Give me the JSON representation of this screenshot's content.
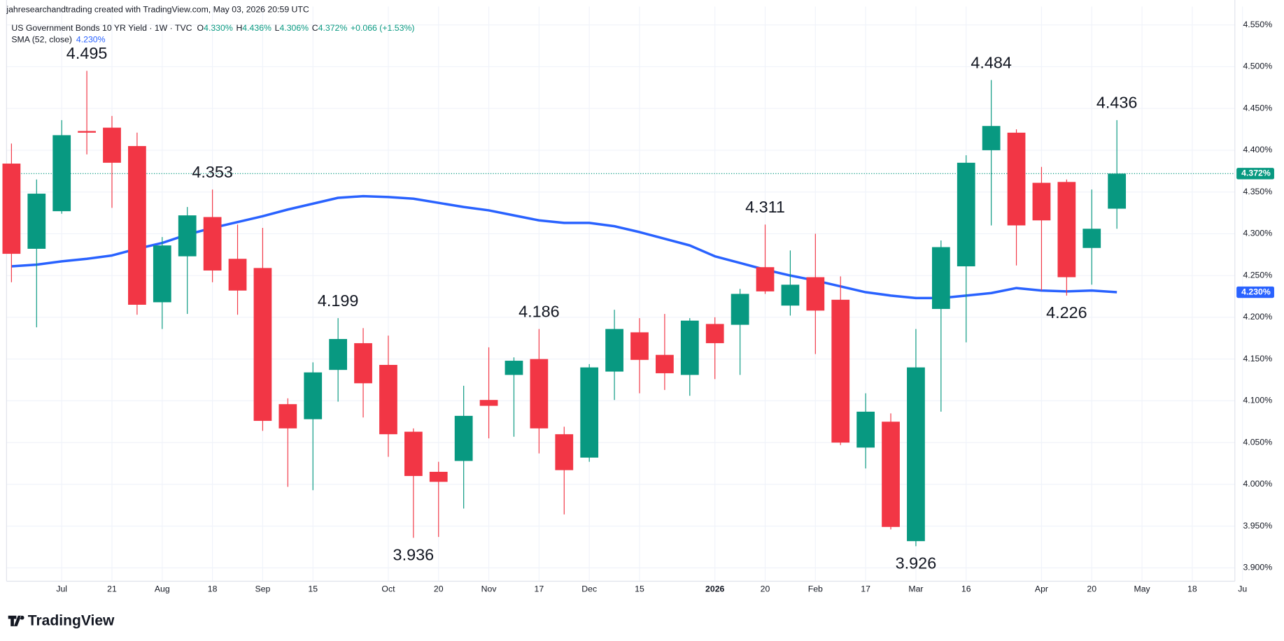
{
  "chart_data": {
    "type": "candlestick",
    "header": "jahresearchandtrading created with TradingView.com, May 03, 2026 20:59 UTC",
    "symbol": "US Government Bonds 10 YR Yield · 1W · TVC",
    "legend_items": [
      {
        "key": "O",
        "value": "4.330%"
      },
      {
        "key": "H",
        "value": "4.436%"
      },
      {
        "key": "L",
        "value": "4.306%"
      },
      {
        "key": "C",
        "value": "4.372%"
      }
    ],
    "change": "+0.066 (+1.53%)",
    "logo": "TradingView",
    "up_color": "#089981",
    "down_color": "#f23645",
    "open": [
      4.384,
      4.282,
      4.327,
      4.423,
      4.427,
      4.405,
      4.218,
      4.273,
      4.32,
      4.27,
      4.259,
      4.096,
      4.078,
      4.137,
      4.169,
      4.143,
      4.063,
      4.015,
      4.028,
      4.101,
      4.131,
      4.15,
      4.06,
      4.032,
      4.135,
      4.182,
      4.155,
      4.131,
      4.192,
      4.191,
      4.26,
      4.214,
      4.248,
      4.221,
      4.044,
      4.075,
      3.932,
      4.21,
      4.261,
      4.4,
      4.421,
      4.361,
      4.362,
      4.283,
      4.33
    ],
    "high": [
      4.408,
      4.365,
      4.436,
      4.495,
      4.441,
      4.421,
      4.296,
      4.332,
      4.353,
      4.311,
      4.307,
      4.103,
      4.146,
      4.199,
      4.187,
      4.178,
      4.067,
      4.027,
      4.118,
      4.164,
      4.152,
      4.186,
      4.069,
      4.144,
      4.209,
      4.199,
      4.204,
      4.199,
      4.2,
      4.234,
      4.311,
      4.28,
      4.3,
      4.249,
      4.109,
      4.085,
      4.186,
      4.292,
      4.394,
      4.484,
      4.425,
      4.38,
      4.365,
      4.353,
      4.436
    ],
    "low": [
      4.242,
      4.188,
      4.324,
      4.395,
      4.331,
      4.203,
      4.186,
      4.204,
      4.242,
      4.203,
      4.064,
      3.997,
      3.993,
      4.099,
      4.08,
      4.033,
      3.936,
      3.937,
      3.971,
      4.055,
      4.057,
      4.037,
      3.964,
      4.027,
      4.101,
      4.109,
      4.113,
      4.106,
      4.126,
      4.131,
      4.228,
      4.202,
      4.156,
      4.047,
      4.019,
      3.946,
      3.926,
      4.087,
      4.17,
      4.31,
      4.262,
      4.232,
      4.226,
      4.239,
      4.306
    ],
    "close": [
      4.276,
      4.348,
      4.418,
      4.421,
      4.385,
      4.215,
      4.286,
      4.322,
      4.256,
      4.232,
      4.076,
      4.067,
      4.134,
      4.174,
      4.121,
      4.06,
      4.01,
      4.003,
      4.082,
      4.094,
      4.148,
      4.067,
      4.017,
      4.14,
      4.186,
      4.149,
      4.133,
      4.196,
      4.169,
      4.228,
      4.231,
      4.239,
      4.208,
      4.05,
      4.087,
      3.949,
      4.14,
      4.284,
      4.385,
      4.429,
      4.31,
      4.316,
      4.248,
      4.306,
      4.372
    ],
    "sma": {
      "name": "SMA (52, close)",
      "value_label": "4.230%",
      "color": "#2962ff",
      "values": [
        4.261,
        4.263,
        4.267,
        4.27,
        4.274,
        4.282,
        4.289,
        4.299,
        4.307,
        4.314,
        4.321,
        4.329,
        4.336,
        4.343,
        4.345,
        4.344,
        4.342,
        4.337,
        4.332,
        4.328,
        4.322,
        4.316,
        4.313,
        4.313,
        4.309,
        4.302,
        4.294,
        4.286,
        4.273,
        4.265,
        4.257,
        4.25,
        4.244,
        4.237,
        4.23,
        4.226,
        4.223,
        4.223,
        4.226,
        4.229,
        4.235,
        4.232,
        4.231,
        4.232,
        4.23
      ]
    },
    "pivots": [
      {
        "index": 3,
        "side": "high"
      },
      {
        "index": 8,
        "side": "high"
      },
      {
        "index": 13,
        "side": "high"
      },
      {
        "index": 16,
        "side": "low"
      },
      {
        "index": 21,
        "side": "high"
      },
      {
        "index": 30,
        "side": "high"
      },
      {
        "index": 36,
        "side": "low"
      },
      {
        "index": 39,
        "side": "high"
      },
      {
        "index": 42,
        "side": "low"
      },
      {
        "index": 44,
        "side": "high"
      }
    ],
    "ylim": [
      3.884,
      4.572
    ],
    "yticks": [
      {
        "value": 3.9,
        "label": "3.900%"
      },
      {
        "value": 3.95,
        "label": "3.950%"
      },
      {
        "value": 4.0,
        "label": "4.000%"
      },
      {
        "value": 4.05,
        "label": "4.050%"
      },
      {
        "value": 4.1,
        "label": "4.100%"
      },
      {
        "value": 4.15,
        "label": "4.150%"
      },
      {
        "value": 4.2,
        "label": "4.200%"
      },
      {
        "value": 4.25,
        "label": "4.250%"
      },
      {
        "value": 4.3,
        "label": "4.300%"
      },
      {
        "value": 4.35,
        "label": "4.350%"
      },
      {
        "value": 4.4,
        "label": "4.400%"
      },
      {
        "value": 4.45,
        "label": "4.450%"
      },
      {
        "value": 4.5,
        "label": "4.500%"
      },
      {
        "value": 4.55,
        "label": "4.550%"
      }
    ],
    "xticks": [
      {
        "value": 2,
        "label": "Jul"
      },
      {
        "value": 4,
        "label": "21"
      },
      {
        "value": 6,
        "label": "Aug"
      },
      {
        "value": 8,
        "label": "18"
      },
      {
        "value": 10,
        "label": "Sep"
      },
      {
        "value": 12,
        "label": "15"
      },
      {
        "value": 15,
        "label": "Oct"
      },
      {
        "value": 17,
        "label": "20"
      },
      {
        "value": 19,
        "label": "Nov"
      },
      {
        "value": 21,
        "label": "17"
      },
      {
        "value": 23,
        "label": "Dec"
      },
      {
        "value": 25,
        "label": "15"
      },
      {
        "value": 28,
        "label": "2026",
        "bold": true
      },
      {
        "value": 30,
        "label": "20"
      },
      {
        "value": 32,
        "label": "Feb"
      },
      {
        "value": 34,
        "label": "17"
      },
      {
        "value": 36,
        "label": "Mar"
      },
      {
        "value": 38,
        "label": "16"
      },
      {
        "value": 41,
        "label": "Apr"
      },
      {
        "value": 43,
        "label": "20"
      },
      {
        "value": 45,
        "label": "May"
      },
      {
        "value": 47,
        "label": "18"
      },
      {
        "value": 49,
        "label": "Ju"
      }
    ],
    "grid": true
  }
}
